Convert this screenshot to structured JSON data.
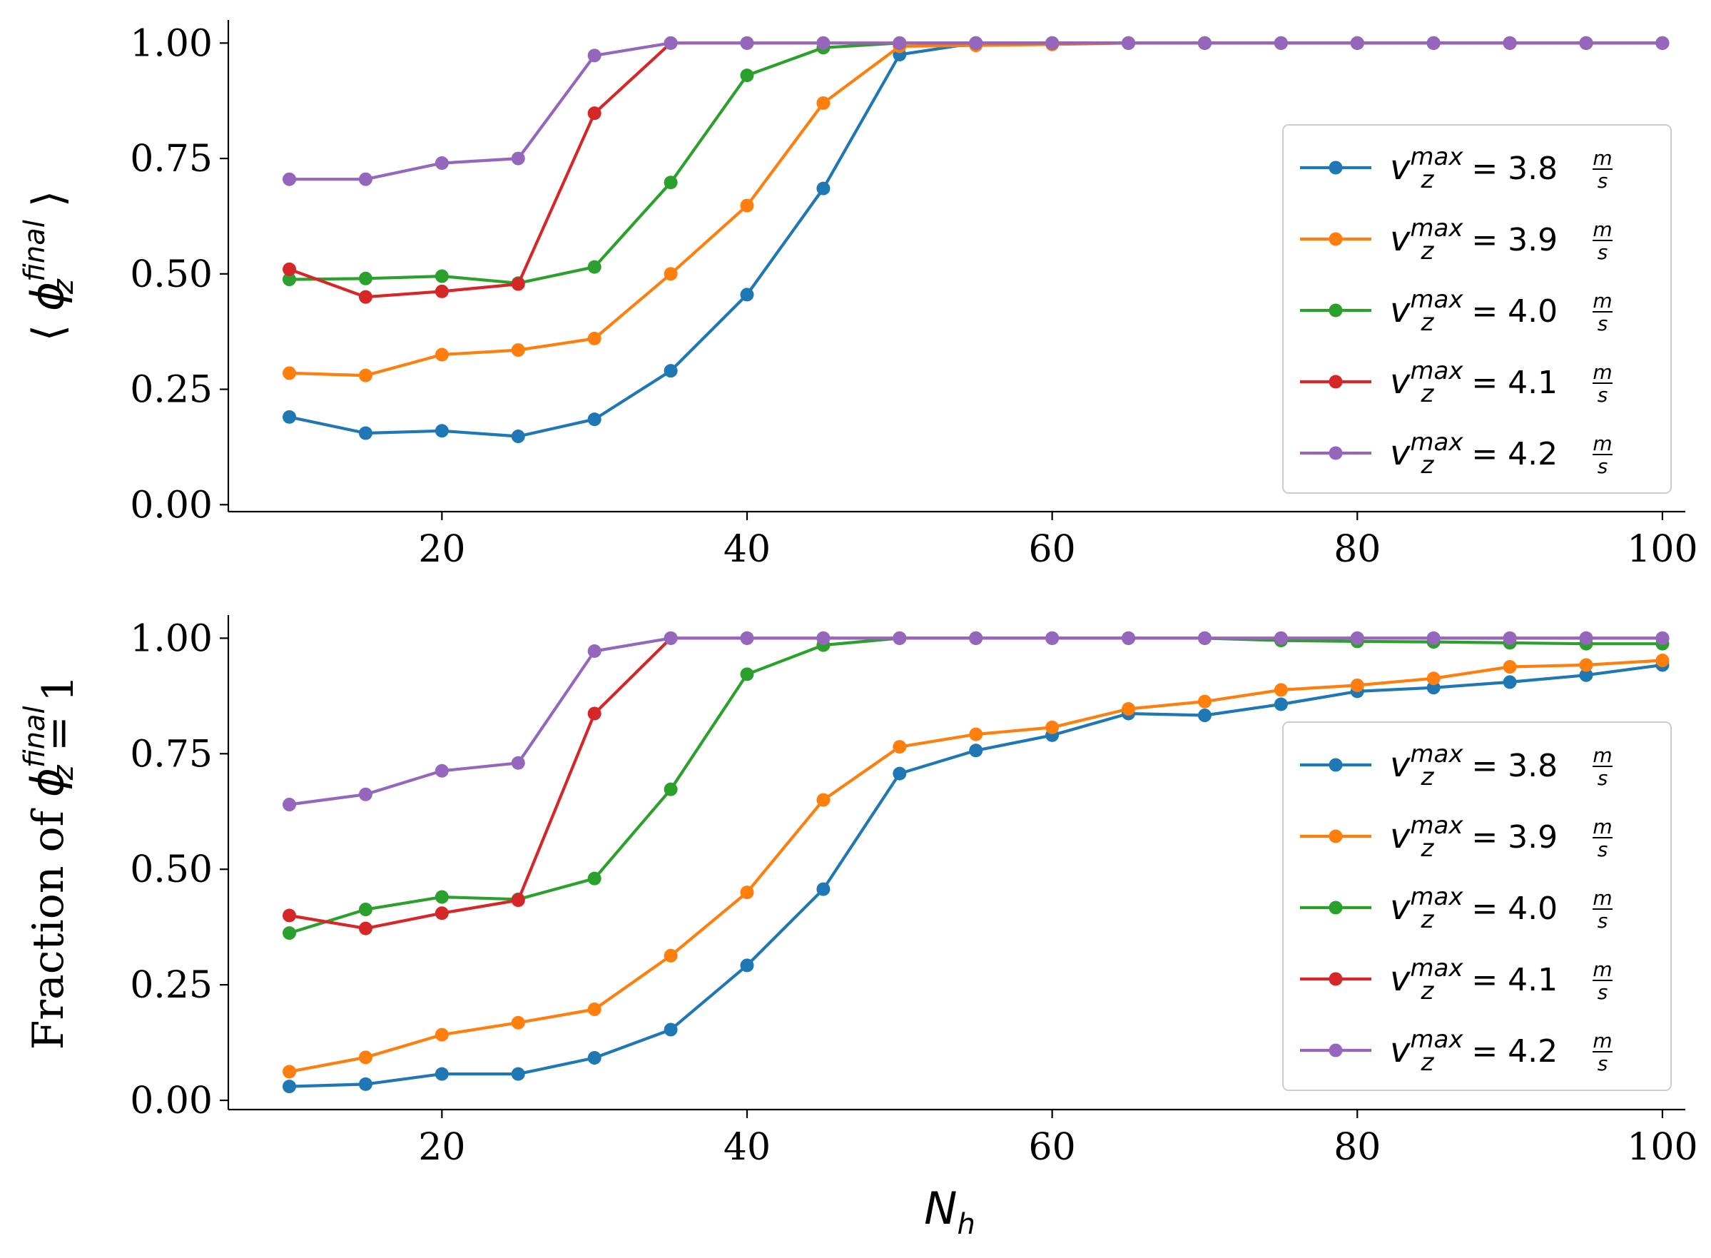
{
  "chart_data": [
    {
      "type": "line",
      "panel": "top",
      "title": "",
      "xlabel": "",
      "ylabel": "⟨ϕ_z^final⟩",
      "ylabel_parts": {
        "open": "⟨",
        "phi": "ϕ",
        "sub": "z",
        "sup": "final",
        "close": "⟩"
      },
      "xlim": [
        6,
        101.5
      ],
      "ylim": [
        -0.015,
        1.05
      ],
      "xticks": [
        "20",
        "40",
        "60",
        "80",
        "100"
      ],
      "yticks": [
        "0.00",
        "0.25",
        "0.50",
        "0.75",
        "1.00"
      ],
      "grid": false,
      "legend_position": "right",
      "x": [
        10,
        15,
        20,
        25,
        30,
        35,
        40,
        45,
        50,
        55,
        60,
        65,
        70,
        75,
        80,
        85,
        90,
        95,
        100
      ],
      "series": [
        {
          "name": "v_z^max = 3.8 m/s",
          "label": {
            "v": "v",
            "sub": "z",
            "sup": "max",
            "eq": "= 3.8",
            "num": "m",
            "den": "s"
          },
          "color": "#1f77b4",
          "values": [
            0.19,
            0.155,
            0.16,
            0.148,
            0.185,
            0.29,
            0.455,
            0.685,
            0.975,
            1.0,
            1.0,
            1.0,
            1.0,
            1.0,
            1.0,
            1.0,
            1.0,
            1.0,
            1.0
          ]
        },
        {
          "name": "v_z^max = 3.9 m/s",
          "label": {
            "v": "v",
            "sub": "z",
            "sup": "max",
            "eq": "= 3.9",
            "num": "m",
            "den": "s"
          },
          "color": "#ff7f0e",
          "values": [
            0.285,
            0.28,
            0.325,
            0.335,
            0.36,
            0.5,
            0.648,
            0.87,
            0.993,
            0.995,
            0.997,
            1.0,
            1.0,
            1.0,
            1.0,
            1.0,
            1.0,
            1.0,
            1.0
          ]
        },
        {
          "name": "v_z^max = 4.0 m/s",
          "label": {
            "v": "v",
            "sub": "z",
            "sup": "max",
            "eq": "= 4.0",
            "num": "m",
            "den": "s"
          },
          "color": "#2ca02c",
          "values": [
            0.488,
            0.49,
            0.495,
            0.48,
            0.515,
            0.698,
            0.93,
            0.99,
            1.0,
            1.0,
            1.0,
            1.0,
            1.0,
            1.0,
            1.0,
            1.0,
            1.0,
            1.0,
            1.0
          ]
        },
        {
          "name": "v_z^max = 4.1 m/s",
          "label": {
            "v": "v",
            "sub": "z",
            "sup": "max",
            "eq": "= 4.1",
            "num": "m",
            "den": "s"
          },
          "color": "#d62728",
          "values": [
            0.51,
            0.45,
            0.462,
            0.478,
            0.848,
            1.0,
            1.0,
            1.0,
            1.0,
            1.0,
            1.0,
            1.0,
            1.0,
            1.0,
            1.0,
            1.0,
            1.0,
            1.0,
            1.0
          ]
        },
        {
          "name": "v_z^max = 4.2 m/s",
          "label": {
            "v": "v",
            "sub": "z",
            "sup": "max",
            "eq": "= 4.2",
            "num": "m",
            "den": "s"
          },
          "color": "#9467bd",
          "values": [
            0.705,
            0.705,
            0.74,
            0.75,
            0.973,
            1.0,
            1.0,
            1.0,
            1.0,
            1.0,
            1.0,
            1.0,
            1.0,
            1.0,
            1.0,
            1.0,
            1.0,
            1.0,
            1.0
          ]
        }
      ]
    },
    {
      "type": "line",
      "panel": "bottom",
      "title": "",
      "xlabel": "N_h",
      "xlabel_parts": {
        "base": "N",
        "sub": "h"
      },
      "ylabel": "Fraction of ϕ_z^final = 1",
      "ylabel_parts": {
        "prefix": "Fraction of",
        "phi": "ϕ",
        "sub": "z",
        "sup": "final",
        "suffix": "= 1"
      },
      "xlim": [
        6,
        101.5
      ],
      "ylim": [
        -0.02,
        1.05
      ],
      "xticks": [
        "20",
        "40",
        "60",
        "80",
        "100"
      ],
      "yticks": [
        "0.00",
        "0.25",
        "0.50",
        "0.75",
        "1.00"
      ],
      "grid": false,
      "legend_position": "right",
      "x": [
        10,
        15,
        20,
        25,
        30,
        35,
        40,
        45,
        50,
        55,
        60,
        65,
        70,
        75,
        80,
        85,
        90,
        95,
        100
      ],
      "series": [
        {
          "name": "v_z^max = 3.8 m/s",
          "label": {
            "v": "v",
            "sub": "z",
            "sup": "max",
            "eq": "= 3.8",
            "num": "m",
            "den": "s"
          },
          "color": "#1f77b4",
          "values": [
            0.03,
            0.035,
            0.057,
            0.057,
            0.092,
            0.153,
            0.292,
            0.457,
            0.707,
            0.757,
            0.79,
            0.837,
            0.833,
            0.857,
            0.885,
            0.893,
            0.905,
            0.92,
            0.942
          ]
        },
        {
          "name": "v_z^max = 3.9 m/s",
          "label": {
            "v": "v",
            "sub": "z",
            "sup": "max",
            "eq": "= 3.9",
            "num": "m",
            "den": "s"
          },
          "color": "#ff7f0e",
          "values": [
            0.062,
            0.093,
            0.142,
            0.168,
            0.197,
            0.313,
            0.45,
            0.65,
            0.765,
            0.792,
            0.807,
            0.847,
            0.863,
            0.888,
            0.898,
            0.913,
            0.938,
            0.942,
            0.952
          ]
        },
        {
          "name": "v_z^max = 4.0 m/s",
          "label": {
            "v": "v",
            "sub": "z",
            "sup": "max",
            "eq": "= 4.0",
            "num": "m",
            "den": "s"
          },
          "color": "#2ca02c",
          "values": [
            0.362,
            0.413,
            0.44,
            0.435,
            0.48,
            0.673,
            0.922,
            0.985,
            1.0,
            1.0,
            1.0,
            1.0,
            1.0,
            0.995,
            0.993,
            0.992,
            0.99,
            0.988,
            0.988
          ]
        },
        {
          "name": "v_z^max = 4.1 m/s",
          "label": {
            "v": "v",
            "sub": "z",
            "sup": "max",
            "eq": "= 4.1",
            "num": "m",
            "den": "s"
          },
          "color": "#d62728",
          "values": [
            0.4,
            0.372,
            0.405,
            0.433,
            0.837,
            1.0,
            1.0,
            1.0,
            1.0,
            1.0,
            1.0,
            1.0,
            1.0,
            1.0,
            1.0,
            1.0,
            1.0,
            1.0,
            1.0
          ]
        },
        {
          "name": "v_z^max = 4.2 m/s",
          "label": {
            "v": "v",
            "sub": "z",
            "sup": "max",
            "eq": "= 4.2",
            "num": "m",
            "den": "s"
          },
          "color": "#9467bd",
          "values": [
            0.64,
            0.662,
            0.713,
            0.73,
            0.972,
            1.0,
            1.0,
            1.0,
            1.0,
            1.0,
            1.0,
            1.0,
            1.0,
            1.0,
            1.0,
            1.0,
            1.0,
            1.0,
            1.0
          ]
        }
      ]
    }
  ]
}
